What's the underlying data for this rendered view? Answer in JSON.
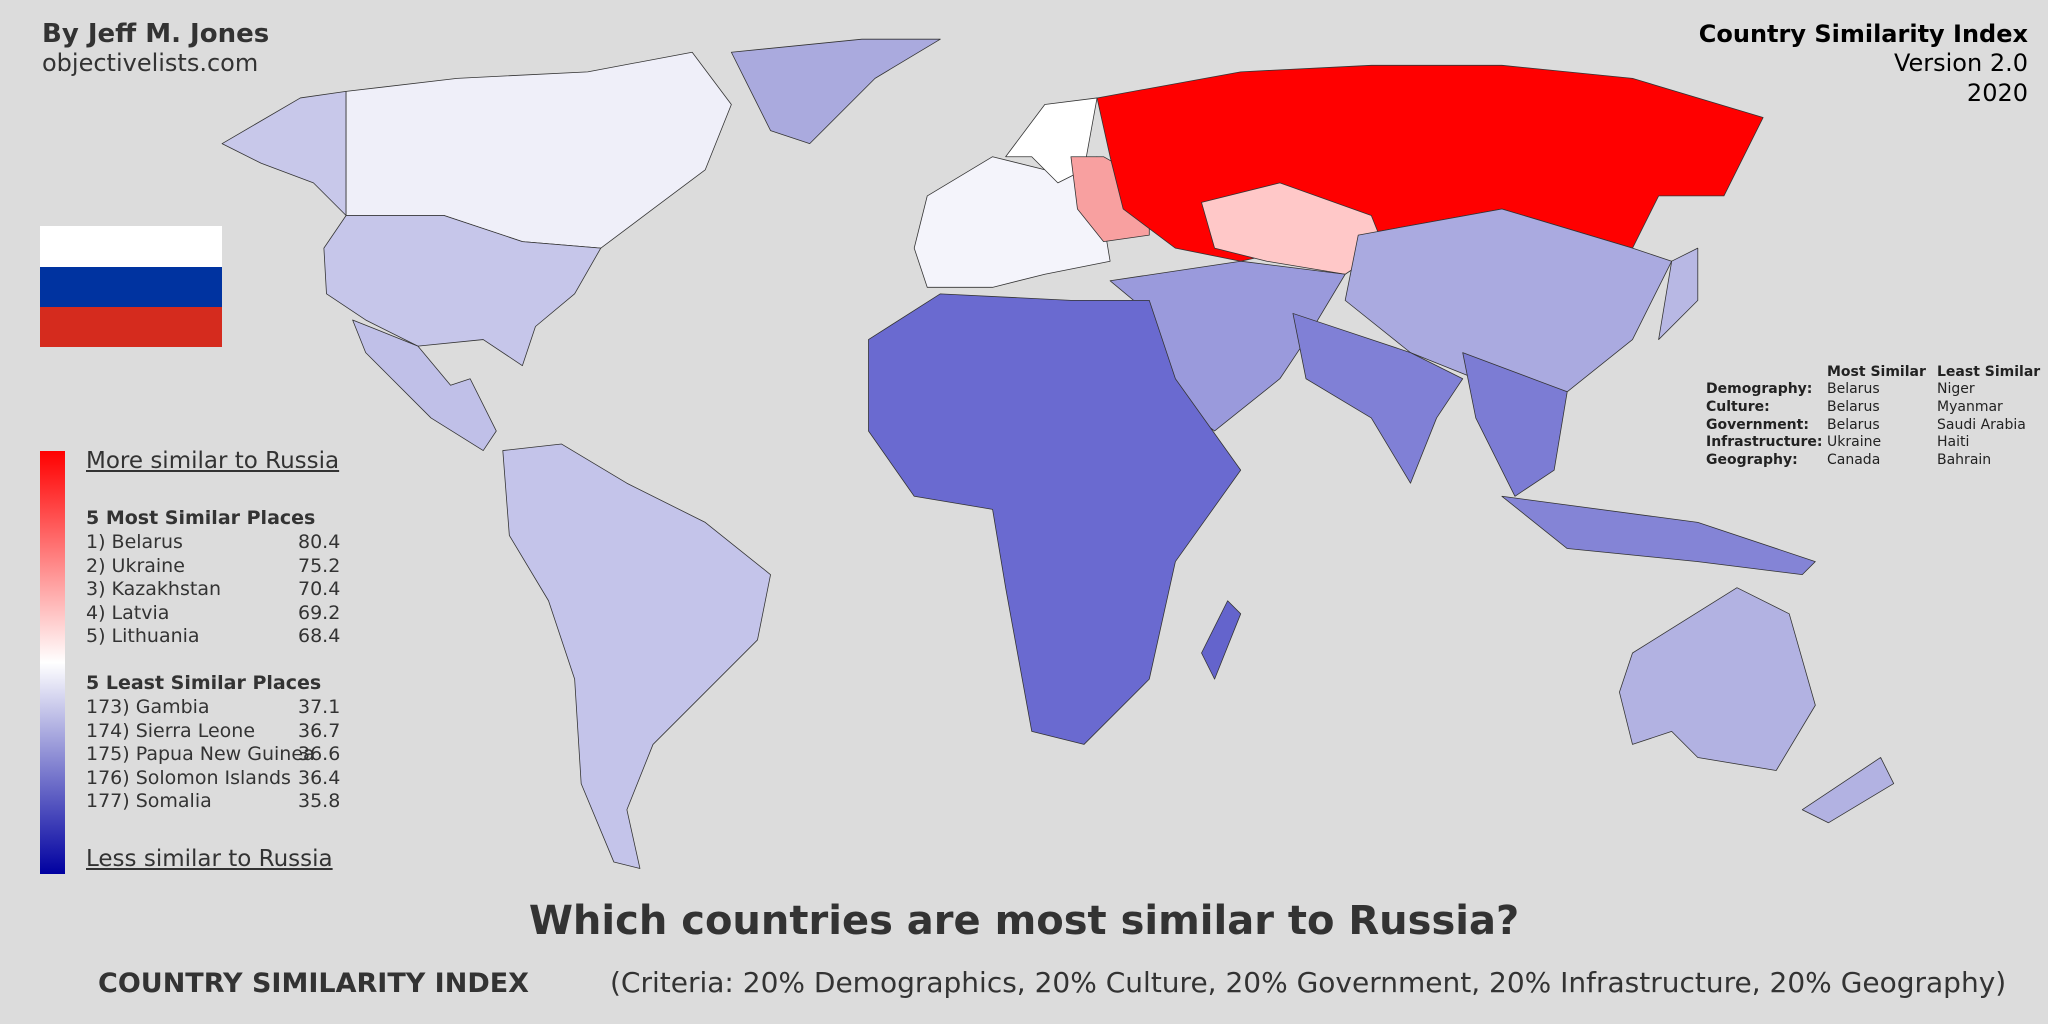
{
  "header": {
    "author": "By Jeff M. Jones",
    "site": "objectivelists.com"
  },
  "badge": {
    "title": "Country Similarity Index",
    "version": "Version 2.0",
    "year": "2020"
  },
  "legend": {
    "top": "More similar to Russia",
    "bottom": "Less similar to Russia",
    "most_similar": {
      "heading": "5 Most Similar Places",
      "items": [
        {
          "label": "1) Belarus",
          "score": 80.4
        },
        {
          "label": "2) Ukraine",
          "score": 75.2
        },
        {
          "label": "3) Kazakhstan",
          "score": 70.4
        },
        {
          "label": "4) Latvia",
          "score": 69.2
        },
        {
          "label": "5) Lithuania",
          "score": 68.4
        }
      ]
    },
    "least_similar": {
      "heading": "5 Least Similar Places",
      "items": [
        {
          "label": "173) Gambia",
          "score": 37.1
        },
        {
          "label": "174) Sierra Leone",
          "score": 36.7
        },
        {
          "label": "175) Papua New Guinea",
          "score": 36.6
        },
        {
          "label": "176) Solomon Islands",
          "score": 36.4
        },
        {
          "label": "177) Somalia",
          "score": 35.8
        }
      ]
    }
  },
  "criteria_table": {
    "headers": [
      "Most Similar",
      "Least Similar"
    ],
    "rows": [
      {
        "label": "Demography:",
        "most": "Belarus",
        "least": "Niger"
      },
      {
        "label": "Culture:",
        "most": "Belarus",
        "least": "Myanmar"
      },
      {
        "label": "Government:",
        "most": "Belarus",
        "least": "Saudi Arabia"
      },
      {
        "label": "Infrastructure:",
        "most": "Ukraine",
        "least": "Haiti"
      },
      {
        "label": "Geography:",
        "most": "Canada",
        "least": "Bahrain"
      }
    ]
  },
  "footer": {
    "question": "Which countries are most similar to Russia?",
    "index": "COUNTRY SIMILARITY INDEX",
    "criteria": "(Criteria: 20% Demographics, 20% Culture, 20% Government, 20% Infrastructure, 20% Geography)"
  }
}
